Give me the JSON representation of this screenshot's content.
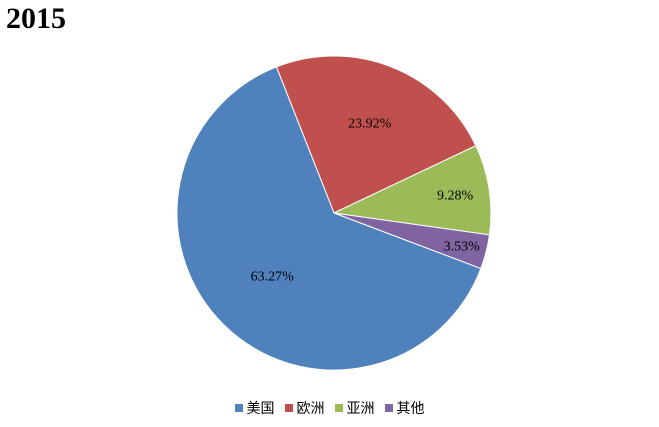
{
  "chart_data": {
    "type": "pie",
    "title": "2015",
    "categories": [
      "美国",
      "欧洲",
      "亚洲",
      "其他"
    ],
    "values": [
      63.27,
      23.92,
      9.28,
      3.53
    ],
    "labels": [
      "63.27%",
      "23.92%",
      "9.28%",
      "3.53%"
    ],
    "colors": [
      "#4F81BD",
      "#C0504D",
      "#9BBB59",
      "#8064A2"
    ],
    "legend_position": "bottom"
  }
}
